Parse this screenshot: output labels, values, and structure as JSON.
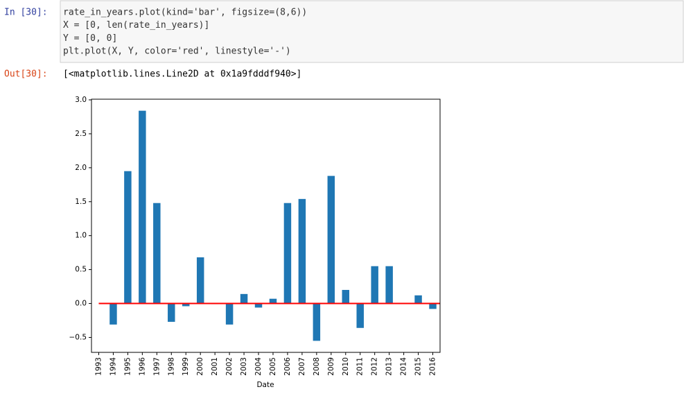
{
  "cell": {
    "in_prompt": "In [30]:",
    "out_prompt": "Out[30]:",
    "code": [
      "rate_in_years.plot(kind='bar', figsize=(8,6))",
      "X = [0, len(rate_in_years)]",
      "Y = [0, 0]",
      "plt.plot(X, Y, color='red', linestyle='-')"
    ],
    "output": "[<matplotlib.lines.Line2D at 0x1a9fdddf940>]"
  },
  "chart_data": {
    "type": "bar",
    "x_label": "Date",
    "categories": [
      "1993",
      "1994",
      "1995",
      "1996",
      "1997",
      "1998",
      "1999",
      "2000",
      "2001",
      "2002",
      "2003",
      "2004",
      "2005",
      "2006",
      "2007",
      "2008",
      "2009",
      "2010",
      "2011",
      "2012",
      "2013",
      "2014",
      "2015",
      "2016"
    ],
    "values": [
      0,
      -0.31,
      1.95,
      2.84,
      1.48,
      -0.27,
      -0.04,
      0.68,
      -0.01,
      -0.31,
      0.14,
      -0.06,
      0.07,
      1.48,
      1.54,
      -0.55,
      1.88,
      0.2,
      -0.36,
      0.55,
      0.55,
      0.01,
      0.12,
      -0.08
    ],
    "color": "#1f77b4",
    "ylim": [
      -0.72,
      3.01
    ],
    "yticks": [
      {
        "value": -0.5,
        "label": "−0.5"
      },
      {
        "value": 0,
        "label": "0.0"
      },
      0.5,
      {
        "value": 1,
        "label": "1.0"
      },
      1.5,
      {
        "value": 2,
        "label": "2.0"
      },
      2.5,
      {
        "value": 3,
        "label": "3.0"
      }
    ],
    "reference_line": {
      "x": [
        0,
        24
      ],
      "y": [
        0,
        0
      ],
      "color": "red"
    },
    "grid": false
  }
}
